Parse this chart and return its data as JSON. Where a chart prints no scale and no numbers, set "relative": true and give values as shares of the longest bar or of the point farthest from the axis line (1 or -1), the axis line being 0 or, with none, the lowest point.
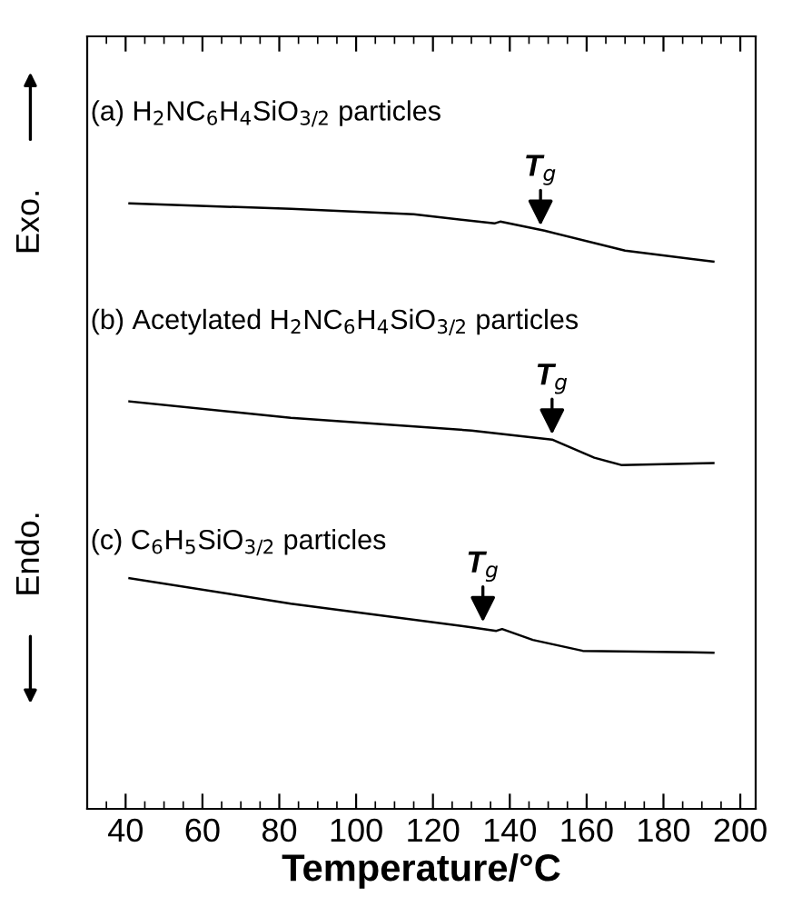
{
  "chart_data": {
    "type": "line",
    "xlabel": "Temperature/°C",
    "relative": true,
    "xlim": [
      30,
      204
    ],
    "xticks": [
      40,
      60,
      80,
      100,
      120,
      140,
      160,
      180,
      200
    ],
    "tick_labels": "x",
    "grid": false,
    "marker": "none",
    "line_style": "solid",
    "series": [
      {
        "color": "#000000",
        "x": [
          41,
          83,
          115,
          136,
          137.5,
          149,
          170,
          193
        ],
        "values": [
          1.0,
          0.991,
          0.982,
          0.967,
          0.97,
          0.955,
          0.922,
          0.904
        ]
      },
      {
        "color": "#000000",
        "x": [
          41,
          83,
          130,
          151,
          162,
          169,
          193
        ],
        "values": [
          0.673,
          0.646,
          0.625,
          0.61,
          0.58,
          0.568,
          0.571
        ]
      },
      {
        "color": "#000000",
        "x": [
          41,
          83,
          130,
          136.5,
          138,
          146,
          159,
          193
        ],
        "values": [
          0.381,
          0.339,
          0.3,
          0.294,
          0.297,
          0.279,
          0.261,
          0.258
        ]
      }
    ],
    "annotations": [
      "(a) H$_{2}$NC$_{6}$H$_{4}$SiO$_{3/2}$ particles",
      "(b) Acetylated H$_{2}$NC$_{6}$H$_{4}$SiO$_{3/2}$ particles",
      "(c) C$_{6}$H$_{5}$SiO$_{3/2}$ particles",
      "Exo.",
      "Endo.",
      {
        "text": "T$_{g}$",
        "x": 148,
        "y": 0.955
      },
      {
        "text": "T$_{g}$",
        "x": 151,
        "y": 0.61
      },
      {
        "text": "T$_{g}$",
        "x": 133,
        "y": 0.3
      }
    ]
  }
}
